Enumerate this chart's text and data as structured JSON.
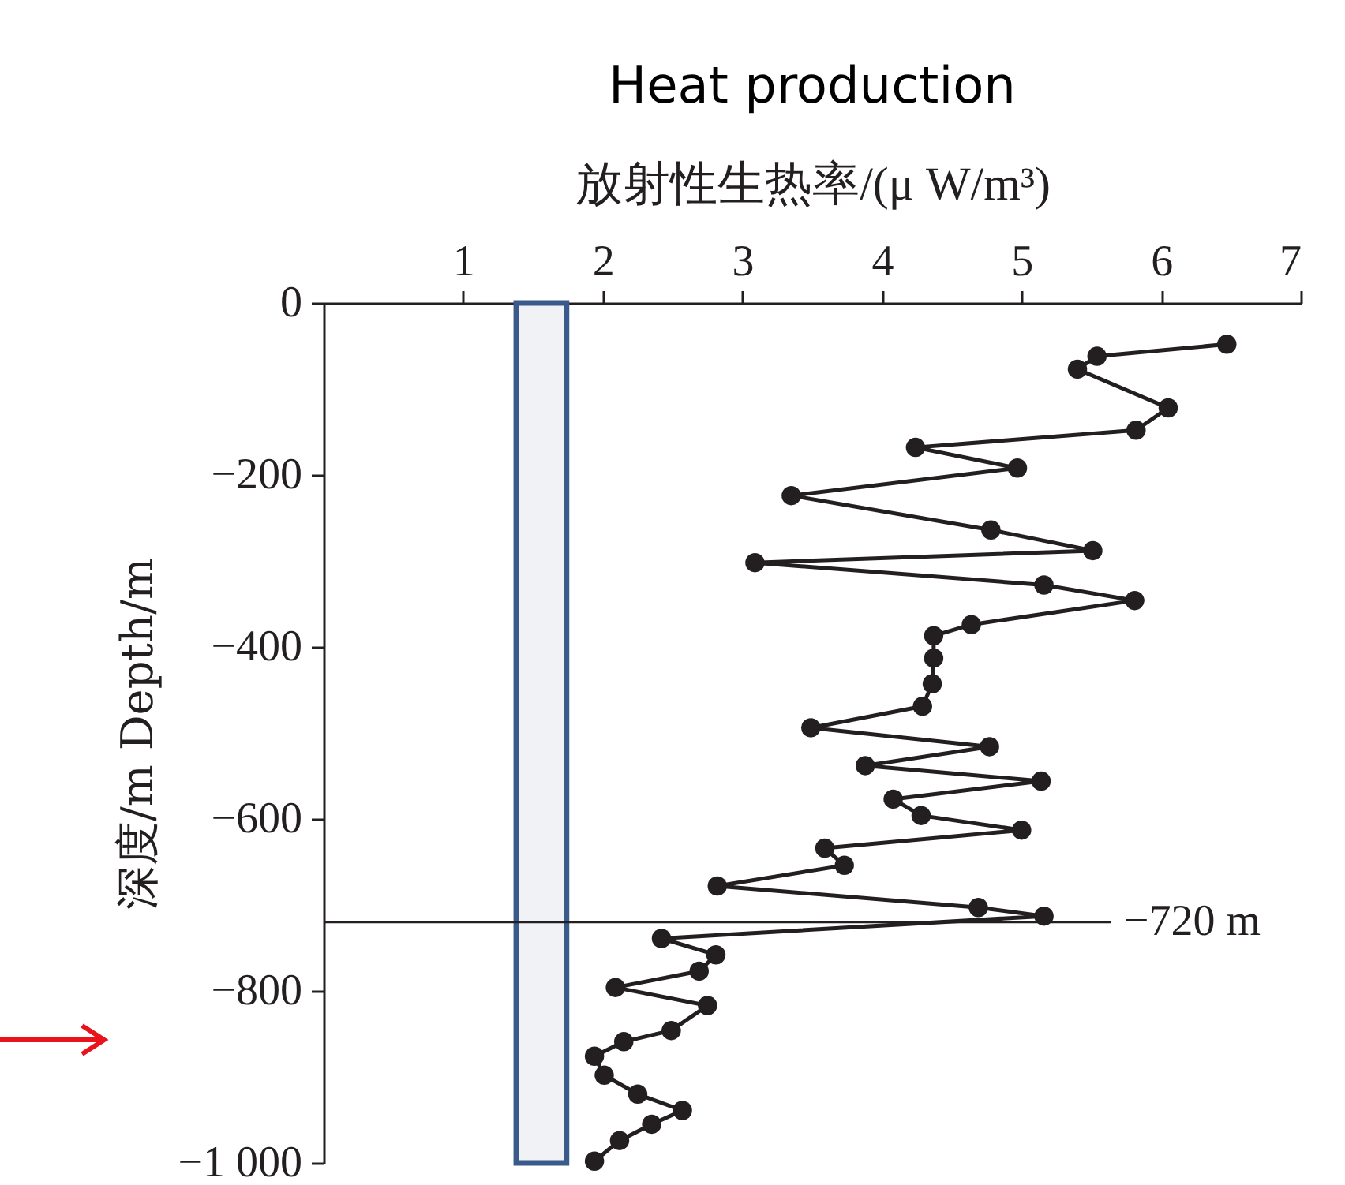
{
  "chart_data": {
    "type": "line",
    "title": "Heat production",
    "xlabel": "放射性生热率/(μ W/m³)",
    "ylabel": "深度/m  Depth/m",
    "series": [
      {
        "color": "#231f20",
        "x": [
          6.47,
          5.54,
          5.4,
          6.05,
          5.82,
          4.24,
          4.97,
          3.35,
          4.78,
          5.51,
          3.09,
          5.16,
          5.81,
          4.64,
          4.37,
          4.37,
          4.36,
          4.29,
          3.49,
          4.77,
          3.88,
          5.14,
          4.08,
          4.28,
          5.0,
          3.59,
          3.73,
          2.82,
          4.69,
          5.16,
          2.42,
          2.81,
          2.69,
          2.09,
          2.75,
          2.49,
          2.15,
          1.94,
          2.01,
          2.25,
          2.57,
          2.35,
          2.12,
          1.94
        ],
        "values": [
          -48,
          -62,
          -77,
          -122,
          -148,
          -168,
          -192,
          -224,
          -264,
          -288,
          -302,
          -328,
          -346,
          -374,
          -387,
          -413,
          -443,
          -469,
          -494,
          -516,
          -538,
          -556,
          -577,
          -596,
          -613,
          -634,
          -654,
          -678,
          -703,
          -713,
          -739,
          -758,
          -777,
          -796,
          -817,
          -846,
          -859,
          -876,
          -898,
          -920,
          -939,
          -955,
          -974,
          -998
        ]
      }
    ],
    "xlim": [
      0,
      7
    ],
    "xticks": [
      1,
      2,
      3,
      4,
      5,
      6,
      7
    ],
    "ylim": [
      -1000,
      0
    ],
    "yticks": [
      0,
      {
        "value": -200,
        "label": "−200"
      },
      {
        "value": -400,
        "label": "−400"
      },
      {
        "value": -600,
        "label": "−600"
      },
      {
        "value": -800,
        "label": "−800"
      },
      {
        "value": -1000,
        "label": "−1 000"
      }
    ],
    "ref_lines": [
      {
        "axis": "y",
        "value": -720,
        "label": "−720 m",
        "color": "#231f20"
      }
    ],
    "bands": [
      {
        "axis": "x",
        "from": 1.38,
        "to": 1.74,
        "color": "#3a5a8c"
      }
    ],
    "marker": "circle",
    "line_style": "solid"
  }
}
